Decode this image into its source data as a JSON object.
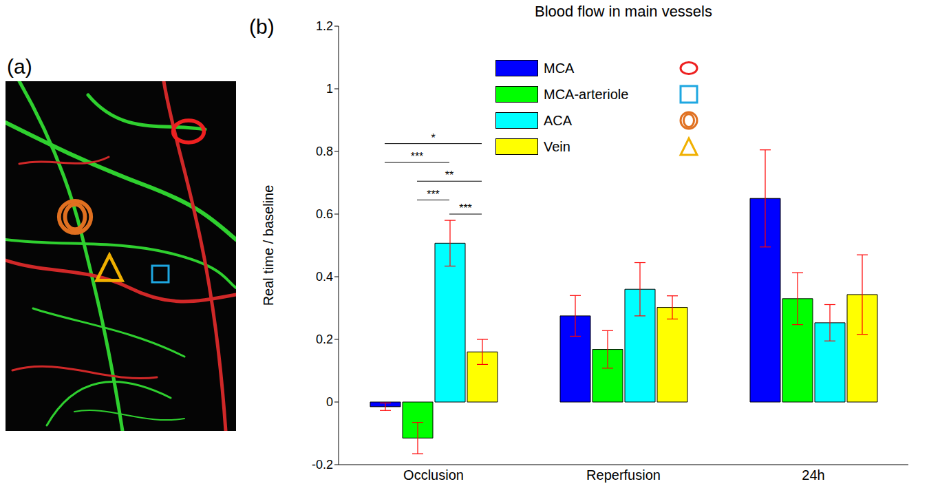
{
  "panel_labels": [
    "(a)",
    "(b)"
  ],
  "chart_data": {
    "type": "bar",
    "title": "Blood flow in main vessels",
    "y_label": "Real time / baseline",
    "categories": [
      "Occlusion",
      "Reperfusion",
      "24h"
    ],
    "series": [
      {
        "name": "MCA",
        "color": "#0000ff",
        "marker": "circle",
        "values": [
          -0.015,
          0.275,
          0.65
        ],
        "errors": [
          0.012,
          0.065,
          0.155
        ]
      },
      {
        "name": "MCA-arteriole",
        "color": "#00ff00",
        "marker": "square",
        "values": [
          -0.115,
          0.168,
          0.33
        ],
        "errors": [
          0.05,
          0.06,
          0.083
        ]
      },
      {
        "name": "ACA",
        "color": "#00ffff",
        "marker": "double_circle",
        "values": [
          0.507,
          0.36,
          0.253
        ],
        "errors": [
          0.073,
          0.085,
          0.058
        ]
      },
      {
        "name": "Vein",
        "color": "#ffff00",
        "marker": "triangle",
        "values": [
          0.16,
          0.302,
          0.343
        ],
        "errors": [
          0.04,
          0.037,
          0.127
        ]
      }
    ],
    "ylim": [
      -0.2,
      1.2
    ],
    "yticks": [
      -0.2,
      0,
      0.2,
      0.4,
      0.6,
      0.8,
      1,
      1.2
    ],
    "grid": false,
    "legend": "top-right",
    "significance": [
      {
        "category": "Occlusion",
        "from": "MCA",
        "to": "Vein",
        "y": 0.825,
        "label": "*"
      },
      {
        "category": "Occlusion",
        "from": "MCA",
        "to": "ACA",
        "y": 0.765,
        "label": "***"
      },
      {
        "category": "Occlusion",
        "from": "MCA-arteriole",
        "to": "Vein",
        "y": 0.705,
        "label": "**"
      },
      {
        "category": "Occlusion",
        "from": "MCA-arteriole",
        "to": "ACA",
        "y": 0.645,
        "label": "***"
      },
      {
        "category": "Occlusion",
        "from": "ACA",
        "to": "Vein",
        "y": 0.6,
        "label": "***"
      }
    ]
  }
}
